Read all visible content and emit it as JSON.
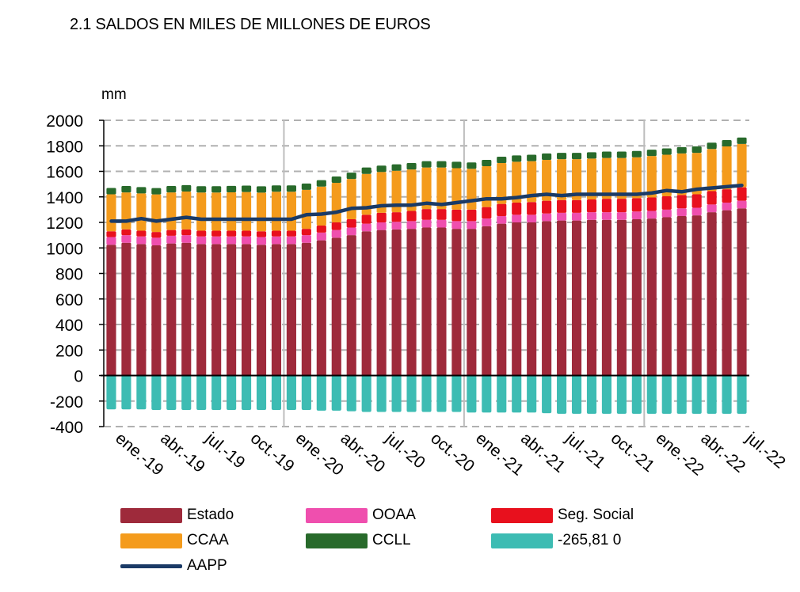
{
  "chart_data": {
    "type": "bar",
    "title": "2.1 SALDOS  EN MILES  DE MILLONES  DE EUROS",
    "ylabel": "mm",
    "ylim": [
      -400,
      2000
    ],
    "yticks": [
      2000,
      1800,
      1600,
      1400,
      1200,
      1000,
      800,
      600,
      400,
      200,
      0,
      -200,
      -400
    ],
    "ytick_labels": [
      "2000",
      "1800",
      "1600",
      "1400",
      "1200",
      "1000",
      "800",
      "600",
      "400",
      "200",
      "0",
      "-200",
      "-400"
    ],
    "xtick_labels": [
      "ene.-19",
      "abr.-19",
      "jul.-19",
      "oct.-19",
      "ene.-20",
      "abr.-20",
      "jul.-20",
      "oct.-20",
      "ene.-21",
      "abr.-21",
      "jul.-21",
      "oct.-21",
      "ene.-22",
      "abr.-22",
      "jul.-22"
    ],
    "xtick_every": 3,
    "year_separators_every": 12,
    "categories": [
      "ene-19",
      "feb-19",
      "mar-19",
      "abr-19",
      "may-19",
      "jun-19",
      "jul-19",
      "ago-19",
      "sep-19",
      "oct-19",
      "nov-19",
      "dic-19",
      "ene-20",
      "feb-20",
      "mar-20",
      "abr-20",
      "may-20",
      "jun-20",
      "jul-20",
      "ago-20",
      "sep-20",
      "oct-20",
      "nov-20",
      "dic-20",
      "ene-21",
      "feb-21",
      "mar-21",
      "abr-21",
      "may-21",
      "jun-21",
      "jul-21",
      "ago-21",
      "sep-21",
      "oct-21",
      "nov-21",
      "dic-21",
      "ene-22",
      "feb-22",
      "mar-22",
      "abr-22",
      "may-22",
      "jun-22",
      "jul-22"
    ],
    "stack_series": [
      {
        "name": "Estado",
        "color": "#9e2a3b",
        "values": [
          1025,
          1040,
          1030,
          1020,
          1035,
          1040,
          1030,
          1030,
          1030,
          1030,
          1025,
          1030,
          1030,
          1040,
          1060,
          1080,
          1100,
          1130,
          1140,
          1145,
          1150,
          1160,
          1160,
          1150,
          1150,
          1170,
          1190,
          1200,
          1200,
          1210,
          1215,
          1215,
          1220,
          1220,
          1220,
          1225,
          1230,
          1240,
          1250,
          1255,
          1280,
          1295,
          1310
        ]
      },
      {
        "name": "OOAA",
        "color": "#ef4fae",
        "values": [
          60,
          60,
          60,
          60,
          60,
          60,
          60,
          60,
          60,
          60,
          60,
          60,
          60,
          60,
          60,
          60,
          60,
          60,
          60,
          60,
          60,
          60,
          60,
          60,
          60,
          60,
          60,
          60,
          60,
          60,
          60,
          60,
          60,
          60,
          60,
          60,
          60,
          60,
          60,
          60,
          60,
          60,
          60
        ]
      },
      {
        "name": "Seg. Social",
        "color": "#e8101d",
        "values": [
          45,
          45,
          45,
          45,
          45,
          45,
          45,
          45,
          45,
          45,
          45,
          45,
          45,
          50,
          55,
          60,
          65,
          70,
          75,
          75,
          80,
          85,
          85,
          90,
          90,
          90,
          95,
          95,
          100,
          100,
          100,
          100,
          100,
          105,
          105,
          105,
          105,
          105,
          105,
          105,
          105,
          105,
          105
        ]
      },
      {
        "name": "CCAA",
        "color": "#f49b1c",
        "values": [
          290,
          290,
          292,
          294,
          295,
          297,
          299,
          299,
          301,
          303,
          303,
          305,
          305,
          305,
          306,
          310,
          315,
          320,
          320,
          325,
          325,
          325,
          325,
          325,
          320,
          320,
          320,
          320,
          320,
          320,
          320,
          320,
          320,
          320,
          320,
          320,
          325,
          325,
          325,
          325,
          330,
          335,
          340
        ]
      },
      {
        "name": "CCLL",
        "color": "#286a2b",
        "values": [
          50,
          50,
          50,
          50,
          50,
          50,
          50,
          50,
          50,
          50,
          50,
          50,
          50,
          50,
          50,
          50,
          50,
          50,
          50,
          50,
          50,
          50,
          50,
          50,
          50,
          50,
          50,
          50,
          50,
          50,
          50,
          50,
          50,
          50,
          50,
          50,
          50,
          50,
          50,
          50,
          50,
          50,
          50
        ]
      }
    ],
    "negative_series": {
      "name": "-265,81 0",
      "color": "#3dbcb3",
      "values": [
        -265,
        -265,
        -265,
        -270,
        -270,
        -270,
        -270,
        -270,
        -270,
        -270,
        -270,
        -270,
        -270,
        -270,
        -275,
        -275,
        -280,
        -285,
        -285,
        -285,
        -285,
        -285,
        -285,
        -285,
        -290,
        -290,
        -290,
        -290,
        -290,
        -295,
        -300,
        -300,
        -300,
        -300,
        -300,
        -300,
        -300,
        -300,
        -300,
        -300,
        -300,
        -300,
        -300
      ]
    },
    "line_series": {
      "name": "AAPP",
      "color": "#1a3a66",
      "values": [
        1210,
        1210,
        1230,
        1210,
        1225,
        1240,
        1225,
        1225,
        1225,
        1225,
        1225,
        1225,
        1225,
        1260,
        1265,
        1280,
        1310,
        1315,
        1330,
        1335,
        1335,
        1350,
        1340,
        1355,
        1370,
        1385,
        1385,
        1395,
        1410,
        1420,
        1410,
        1420,
        1420,
        1420,
        1420,
        1420,
        1430,
        1450,
        1440,
        1460,
        1470,
        1480,
        1490
      ]
    },
    "legend": [
      {
        "name": "Estado",
        "kind": "bar",
        "color": "#9e2a3b"
      },
      {
        "name": "OOAA",
        "kind": "bar",
        "color": "#ef4fae"
      },
      {
        "name": "Seg. Social",
        "kind": "bar",
        "color": "#e8101d"
      },
      {
        "name": "CCAA",
        "kind": "bar",
        "color": "#f49b1c"
      },
      {
        "name": "CCLL",
        "kind": "bar",
        "color": "#286a2b"
      },
      {
        "name": "-265,81 0",
        "kind": "bar",
        "color": "#3dbcb3"
      },
      {
        "name": "AAPP",
        "kind": "line",
        "color": "#1a3a66"
      }
    ],
    "legend_position": "bottom",
    "grid": true
  }
}
